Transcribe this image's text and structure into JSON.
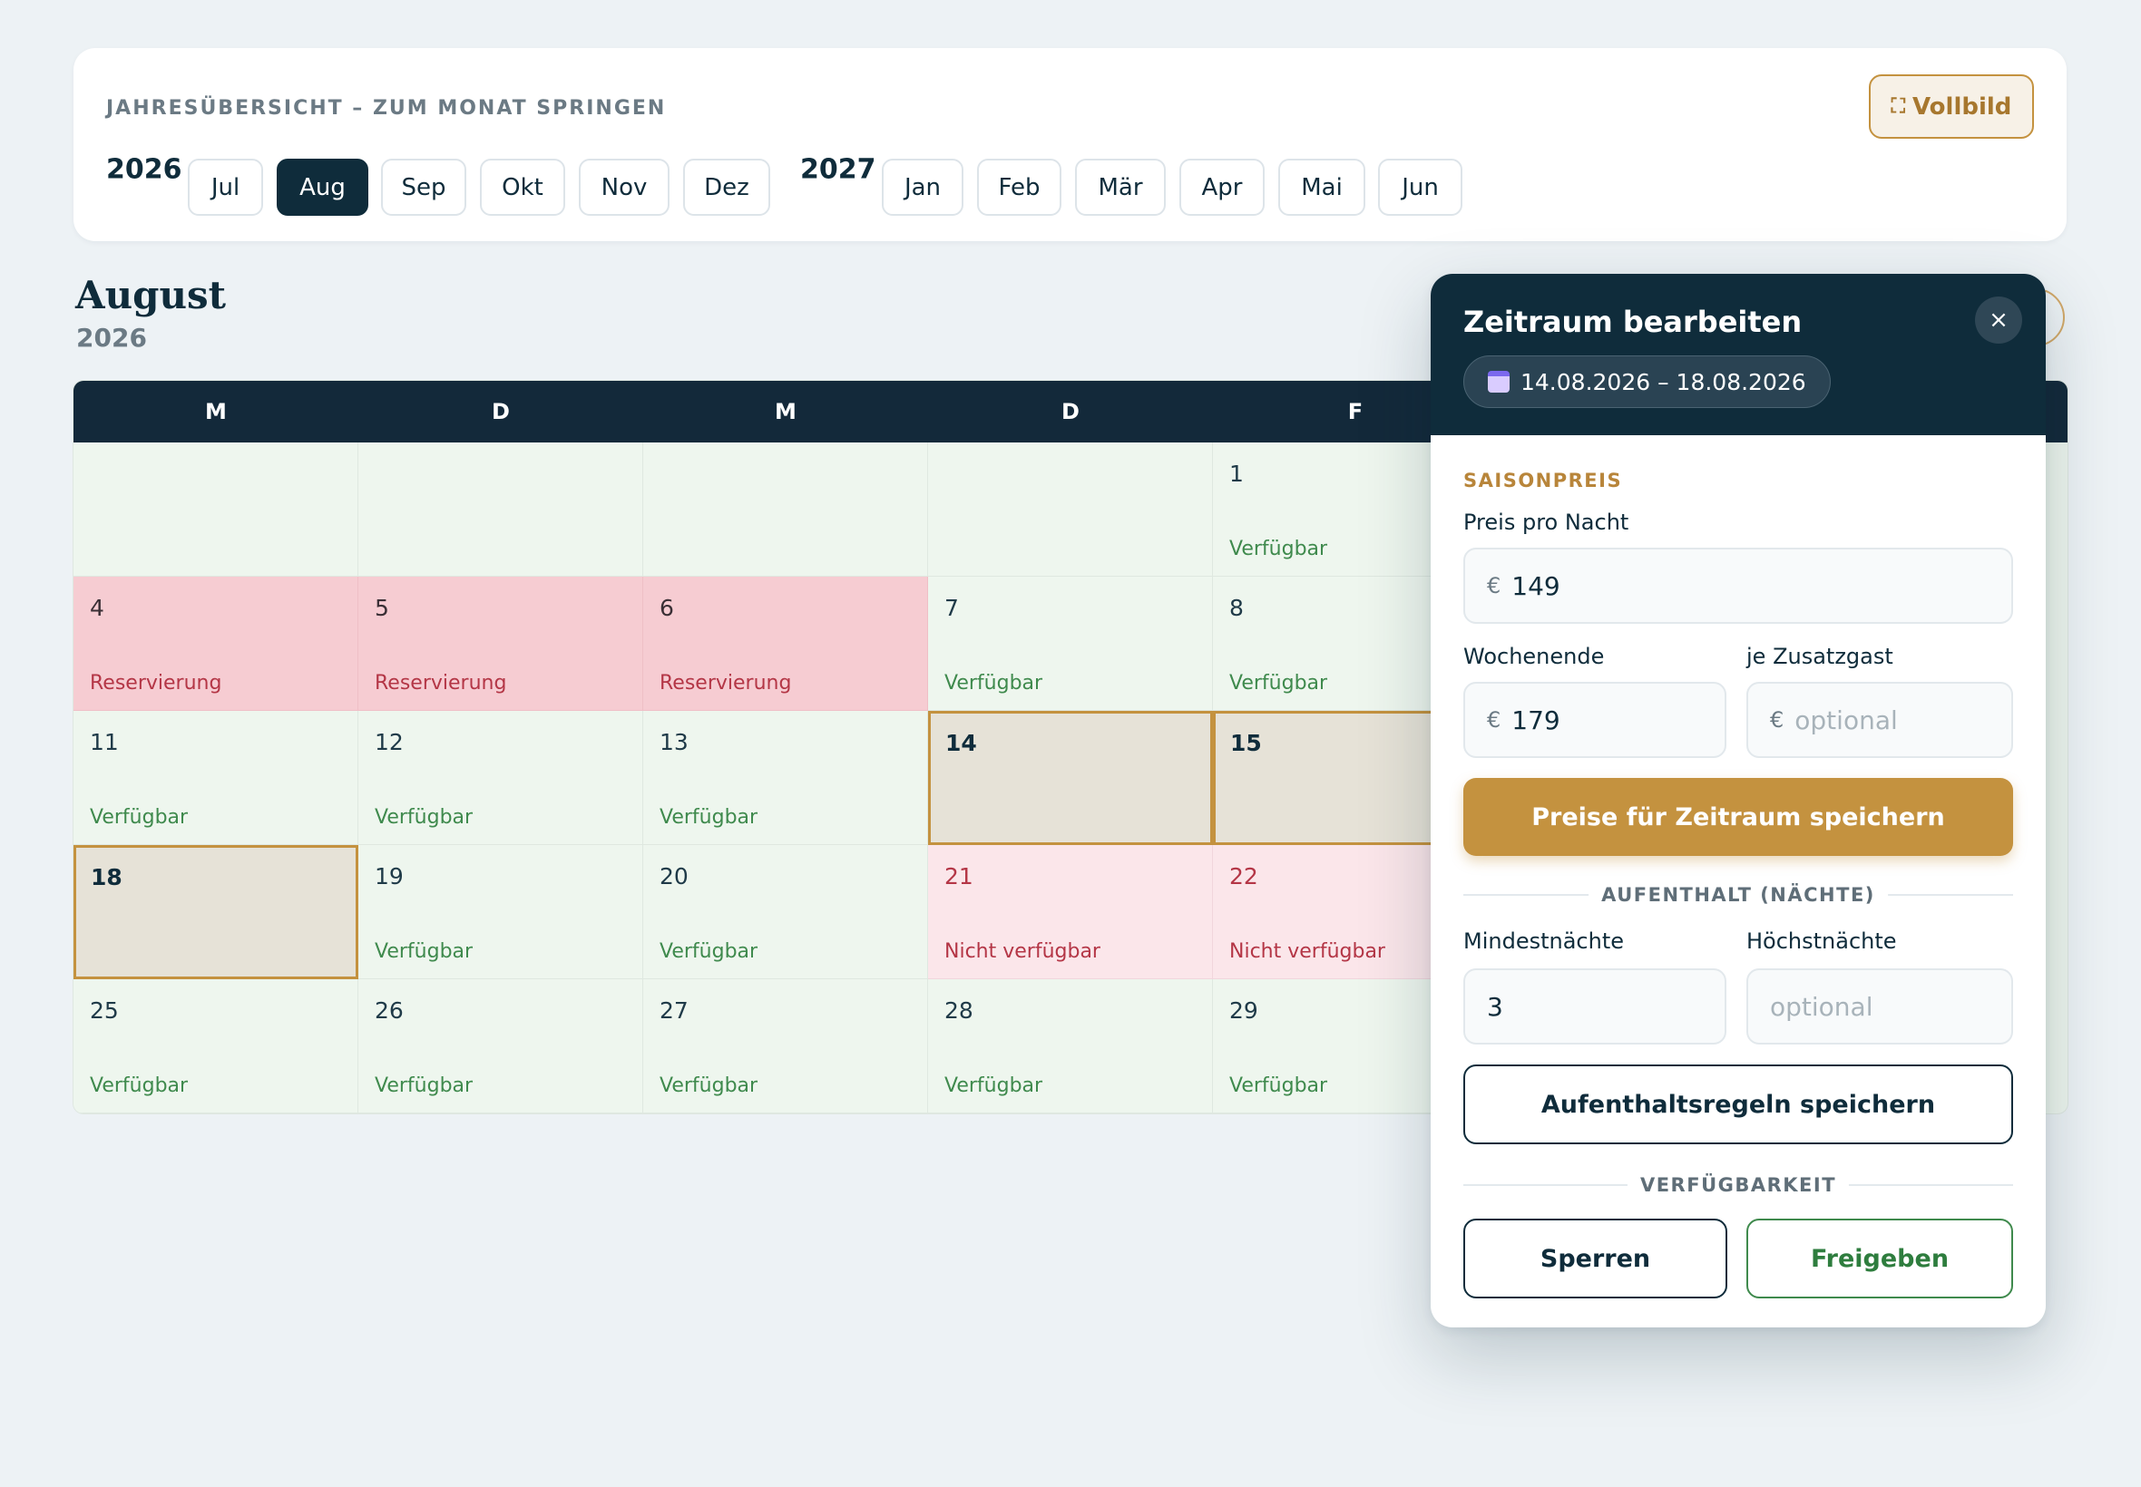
{
  "year_overview": {
    "title": "JAHRESÜBERSICHT – ZUM MONAT SPRINGEN",
    "fullscreen_label": "Vollbild",
    "fullscreen_icon": "fullscreen-icon",
    "years": [
      {
        "label": "2026",
        "months": [
          "Jul",
          "Aug",
          "Sep",
          "Okt",
          "Nov",
          "Dez"
        ]
      },
      {
        "label": "2027",
        "months": [
          "Jan",
          "Feb",
          "Mär",
          "Apr",
          "Mai",
          "Jun"
        ]
      }
    ],
    "active_month": "Aug"
  },
  "calendar": {
    "month_title": "August",
    "year": "2026",
    "weekdays": [
      "M",
      "D",
      "M",
      "D",
      "F"
    ],
    "rows": [
      [
        {
          "day": "",
          "status": "",
          "type": "empty"
        },
        {
          "day": "",
          "status": "",
          "type": "empty"
        },
        {
          "day": "",
          "status": "",
          "type": "empty"
        },
        {
          "day": "",
          "status": "",
          "type": "empty"
        },
        {
          "day": "1",
          "status": "Verfügbar",
          "type": "available"
        }
      ],
      [
        {
          "day": "4",
          "status": "Reservierung",
          "type": "reserved"
        },
        {
          "day": "5",
          "status": "Reservierung",
          "type": "reserved"
        },
        {
          "day": "6",
          "status": "Reservierung",
          "type": "reserved"
        },
        {
          "day": "7",
          "status": "Verfügbar",
          "type": "available"
        },
        {
          "day": "8",
          "status": "Verfügbar",
          "type": "available"
        }
      ],
      [
        {
          "day": "11",
          "status": "Verfügbar",
          "type": "available"
        },
        {
          "day": "12",
          "status": "Verfügbar",
          "type": "available"
        },
        {
          "day": "13",
          "status": "Verfügbar",
          "type": "available"
        },
        {
          "day": "14",
          "status": "",
          "type": "selected"
        },
        {
          "day": "15",
          "status": "",
          "type": "selected"
        }
      ],
      [
        {
          "day": "18",
          "status": "",
          "type": "selected"
        },
        {
          "day": "19",
          "status": "Verfügbar",
          "type": "available"
        },
        {
          "day": "20",
          "status": "Verfügbar",
          "type": "available"
        },
        {
          "day": "21",
          "status": "Nicht verfügbar",
          "type": "unavailable"
        },
        {
          "day": "22",
          "status": "Nicht verfügbar",
          "type": "unavailable"
        }
      ],
      [
        {
          "day": "25",
          "status": "Verfügbar",
          "type": "available"
        },
        {
          "day": "26",
          "status": "Verfügbar",
          "type": "available"
        },
        {
          "day": "27",
          "status": "Verfügbar",
          "type": "available"
        },
        {
          "day": "28",
          "status": "Verfügbar",
          "type": "available"
        },
        {
          "day": "29",
          "status": "Verfügbar",
          "type": "available"
        }
      ]
    ]
  },
  "panel": {
    "title": "Zeitraum bearbeiten",
    "close_label": "×",
    "date_range": "14.08.2026 – 18.08.2026",
    "season_section": "SAISONPREIS",
    "price_label": "Preis pro Nacht",
    "currency": "€",
    "price_value": "149",
    "weekend_label": "Wochenende",
    "weekend_value": "179",
    "extra_guest_label": "je Zusatzgast",
    "extra_guest_placeholder": "optional",
    "save_prices_label": "Preise für Zeitraum speichern",
    "stay_section": "AUFENTHALT (NÄCHTE)",
    "min_nights_label": "Mindestnächte",
    "min_nights_value": "3",
    "max_nights_label": "Höchstnächte",
    "max_nights_placeholder": "optional",
    "save_stay_label": "Aufenthaltsregeln speichern",
    "availability_section": "VERFÜGBARKEIT",
    "block_label": "Sperren",
    "release_label": "Freigeben"
  },
  "colors": {
    "navy": "#0f2c3b",
    "gold": "#c4923f",
    "available": "#eef6ee",
    "reserved": "#f6ccd2",
    "unavailable": "#fbe6ea",
    "green_text": "#3f8a4d",
    "red_text": "#b43646"
  }
}
